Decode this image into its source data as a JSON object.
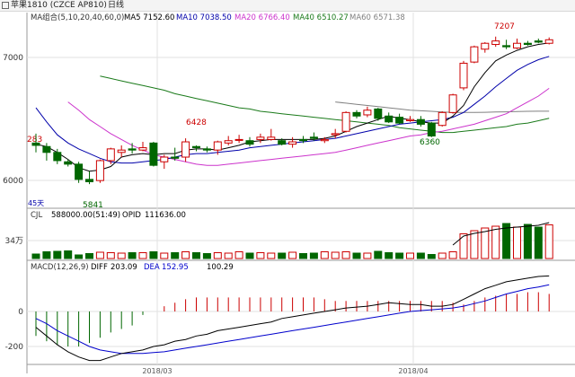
{
  "window": {
    "title": "苹果1810 (CZCE AP810)",
    "period": "日线"
  },
  "main_legend": {
    "ma_group": "MA组合(5,10,20,40,60,0)",
    "ma5": "MA5 7152.60",
    "ma10": "MA10 7038.50",
    "ma20": "MA20 6766.40",
    "ma40": "MA40 6510.27",
    "ma60": "MA60 6571.38"
  },
  "volume_legend": {
    "cjl": "CJL",
    "vol": "588000.00(51:49)",
    "opid": "OPID",
    "opid_value": "111636.00"
  },
  "macd_legend": {
    "title": "MACD(12,26,9)",
    "diff": "DIFF",
    "diff_value": "203.09",
    "dea": "DEA",
    "dea_value": "152.95",
    "macd_value": "100.29"
  },
  "labels": {
    "price_high": "7207",
    "price_6428": "6428",
    "price_6360": "6360",
    "price_5841": "5841",
    "price_left": "283",
    "days": "45天",
    "y7000": "7000",
    "y6000": "6000",
    "vol_unit": "34万",
    "macd_zero": "0",
    "macd_m200": "-200",
    "x_mar": "2018/03",
    "x_apr": "2018/04"
  },
  "colors": {
    "up": "#cc0000",
    "down": "#006600",
    "ma5": "#000000",
    "ma10": "#0000aa",
    "ma20": "#cc33cc",
    "ma40": "#1a7a1a",
    "ma60": "#808080",
    "diff": "#000000",
    "dea": "#0000cc"
  },
  "chart_data": {
    "type": "candlestick",
    "y_range": [
      5790,
      7320
    ],
    "candles": [
      [
        6300,
        6280,
        6380,
        6220
      ],
      [
        6270,
        6220,
        6300,
        6150
      ],
      [
        6220,
        6150,
        6250,
        6120
      ],
      [
        6140,
        6120,
        6160,
        6100
      ],
      [
        6120,
        5990,
        6140,
        5960
      ],
      [
        5990,
        5970,
        6060,
        5950
      ],
      [
        5980,
        6150,
        6160,
        5960
      ],
      [
        6150,
        6250,
        6260,
        6120
      ],
      [
        6220,
        6240,
        6280,
        6180
      ],
      [
        6250,
        6240,
        6300,
        6210
      ],
      [
        6240,
        6260,
        6310,
        6230
      ],
      [
        6300,
        6110,
        6310,
        6100
      ],
      [
        6140,
        6180,
        6200,
        6080
      ],
      [
        6180,
        6170,
        6260,
        6150
      ],
      [
        6180,
        6310,
        6340,
        6140
      ],
      [
        6270,
        6260,
        6280,
        6230
      ],
      [
        6250,
        6240,
        6270,
        6220
      ],
      [
        6240,
        6310,
        6320,
        6200
      ],
      [
        6300,
        6320,
        6360,
        6280
      ],
      [
        6330,
        6330,
        6370,
        6300
      ],
      [
        6320,
        6290,
        6350,
        6270
      ],
      [
        6330,
        6350,
        6380,
        6300
      ],
      [
        6330,
        6350,
        6420,
        6320
      ],
      [
        6320,
        6290,
        6340,
        6280
      ],
      [
        6290,
        6310,
        6350,
        6260
      ],
      [
        6330,
        6320,
        6360,
        6300
      ],
      [
        6350,
        6340,
        6390,
        6320
      ],
      [
        6320,
        6330,
        6350,
        6300
      ],
      [
        6370,
        6380,
        6420,
        6340
      ],
      [
        6400,
        6560,
        6570,
        6390
      ],
      [
        6560,
        6530,
        6580,
        6510
      ],
      [
        6540,
        6580,
        6610,
        6520
      ],
      [
        6590,
        6510,
        6600,
        6490
      ],
      [
        6530,
        6480,
        6560,
        6470
      ],
      [
        6520,
        6470,
        6550,
        6460
      ],
      [
        6490,
        6500,
        6530,
        6480
      ],
      [
        6500,
        6460,
        6530,
        6440
      ],
      [
        6470,
        6360,
        6480,
        6350
      ],
      [
        6450,
        6560,
        6570,
        6440
      ],
      [
        6560,
        6710,
        6720,
        6550
      ],
      [
        6770,
        6980,
        7000,
        6750
      ],
      [
        6990,
        7120,
        7130,
        6980
      ],
      [
        7100,
        7150,
        7160,
        7070
      ],
      [
        7140,
        7170,
        7207,
        7120
      ],
      [
        7130,
        7120,
        7180,
        7100
      ],
      [
        7110,
        7150,
        7190,
        7100
      ],
      [
        7150,
        7140,
        7170,
        7130
      ],
      [
        7170,
        7160,
        7190,
        7150
      ],
      [
        7150,
        7180,
        7200,
        7140
      ]
    ],
    "ma5": [
      6290,
      6270,
      6220,
      6160,
      6090,
      6060,
      6070,
      6100,
      6180,
      6200,
      6210,
      6200,
      6210,
      6210,
      6240,
      6250,
      6250,
      6240,
      6260,
      6280,
      6310,
      6320,
      6330,
      6330,
      6330,
      6330,
      6330,
      6340,
      6360,
      6400,
      6440,
      6470,
      6500,
      6530,
      6510,
      6500,
      6480,
      6470,
      6470,
      6530,
      6620,
      6780,
      6900,
      7000,
      7050,
      7090,
      7120,
      7140,
      7152.6
    ],
    "ma10": [
      6600,
      6480,
      6370,
      6300,
      6250,
      6210,
      6170,
      6140,
      6130,
      6130,
      6140,
      6150,
      6160,
      6180,
      6200,
      6210,
      6210,
      6220,
      6230,
      6240,
      6260,
      6270,
      6280,
      6290,
      6300,
      6310,
      6320,
      6330,
      6340,
      6360,
      6380,
      6400,
      6420,
      6440,
      6460,
      6470,
      6480,
      6490,
      6500,
      6520,
      6560,
      6630,
      6700,
      6780,
      6850,
      6920,
      6970,
      7010,
      7038.5
    ],
    "ma20": [
      null,
      null,
      null,
      6650,
      6580,
      6500,
      6440,
      6380,
      6330,
      6280,
      6240,
      6200,
      6180,
      6160,
      6140,
      6120,
      6110,
      6110,
      6120,
      6130,
      6140,
      6150,
      6160,
      6170,
      6180,
      6190,
      6200,
      6210,
      6220,
      6240,
      6260,
      6280,
      6300,
      6320,
      6340,
      6360,
      6370,
      6390,
      6400,
      6420,
      6440,
      6460,
      6490,
      6520,
      6550,
      6600,
      6650,
      6700,
      6766.4
    ],
    "ma40": [
      null,
      null,
      null,
      null,
      null,
      null,
      6870,
      6850,
      6830,
      6810,
      6790,
      6770,
      6750,
      6720,
      6700,
      6680,
      6660,
      6640,
      6620,
      6600,
      6590,
      6570,
      6560,
      6550,
      6540,
      6530,
      6520,
      6510,
      6500,
      6490,
      6480,
      6470,
      6460,
      6450,
      6430,
      6420,
      6410,
      6400,
      6390,
      6390,
      6400,
      6410,
      6420,
      6430,
      6440,
      6460,
      6470,
      6490,
      6510.27
    ],
    "ma60": [
      null,
      null,
      null,
      null,
      null,
      null,
      null,
      null,
      null,
      null,
      null,
      null,
      null,
      null,
      null,
      null,
      null,
      null,
      null,
      null,
      null,
      null,
      null,
      null,
      null,
      null,
      null,
      null,
      6650,
      6640,
      6630,
      6620,
      6610,
      6600,
      6590,
      6580,
      6575,
      6570,
      6565,
      6560,
      6560,
      6560,
      6562,
      6564,
      6566,
      6568,
      6570,
      6571,
      6571.38
    ],
    "volume": [
      10,
      15,
      16,
      17,
      8,
      11,
      14,
      13,
      12,
      13,
      13,
      15,
      12,
      13,
      15,
      13,
      11,
      13,
      12,
      15,
      12,
      13,
      12,
      12,
      14,
      11,
      12,
      15,
      14,
      15,
      12,
      12,
      16,
      13,
      12,
      12,
      12,
      9,
      12,
      15,
      55,
      62,
      68,
      72,
      78,
      70,
      76,
      70,
      75
    ],
    "opid": [
      null,
      null,
      null,
      null,
      null,
      null,
      null,
      null,
      null,
      null,
      null,
      null,
      null,
      null,
      null,
      null,
      null,
      null,
      null,
      null,
      null,
      null,
      null,
      null,
      null,
      null,
      null,
      null,
      null,
      null,
      null,
      null,
      null,
      null,
      null,
      null,
      null,
      null,
      null,
      30,
      50,
      56,
      60,
      65,
      68,
      70,
      72,
      74,
      80
    ],
    "macd_bars": [
      -140,
      -170,
      -190,
      -200,
      -200,
      -180,
      -150,
      -120,
      -100,
      -80,
      -20,
      0,
      30,
      50,
      70,
      80,
      80,
      80,
      80,
      80,
      80,
      80,
      80,
      80,
      80,
      80,
      80,
      70,
      60,
      60,
      60,
      60,
      60,
      60,
      60,
      60,
      60,
      60,
      60,
      50,
      40,
      60,
      80,
      90,
      100,
      100,
      110,
      110,
      100.29
    ],
    "diff": [
      -90,
      -140,
      -190,
      -230,
      -260,
      -280,
      -280,
      -260,
      -240,
      -230,
      -220,
      -200,
      -190,
      -170,
      -160,
      -140,
      -130,
      -110,
      -100,
      -90,
      -80,
      -70,
      -60,
      -40,
      -30,
      -20,
      -10,
      0,
      10,
      20,
      25,
      30,
      40,
      50,
      45,
      40,
      40,
      30,
      30,
      40,
      70,
      100,
      130,
      150,
      170,
      180,
      190,
      200,
      203.09
    ],
    "dea": [
      -40,
      -70,
      -110,
      -140,
      -170,
      -200,
      -220,
      -230,
      -240,
      -240,
      -240,
      -235,
      -230,
      -220,
      -210,
      -200,
      -190,
      -180,
      -170,
      -160,
      -150,
      -140,
      -130,
      -120,
      -110,
      -100,
      -90,
      -80,
      -70,
      -60,
      -50,
      -40,
      -30,
      -20,
      -10,
      0,
      5,
      10,
      15,
      20,
      30,
      45,
      60,
      80,
      100,
      115,
      130,
      140,
      152.95
    ],
    "macd_range": [
      -260,
      260
    ]
  }
}
